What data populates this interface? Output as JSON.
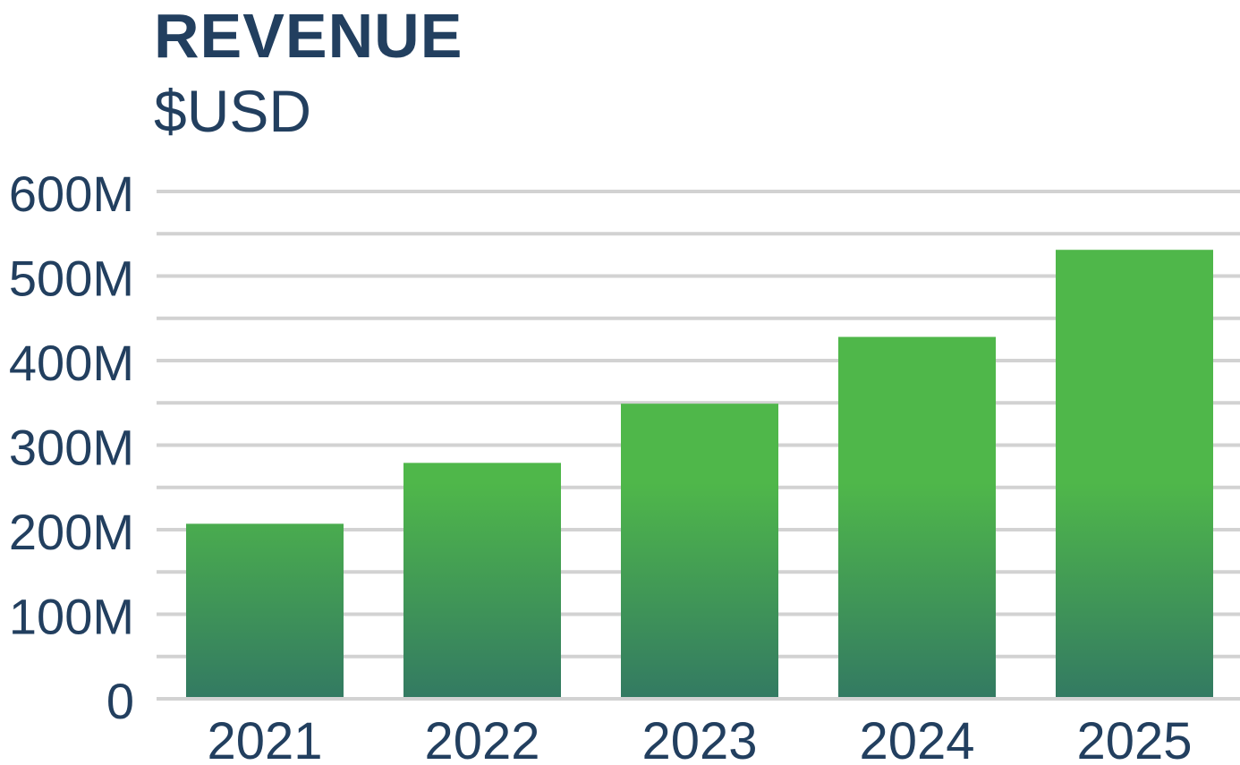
{
  "chart_data": {
    "type": "bar",
    "title": "REVENUE",
    "subtitle": "$USD",
    "xlabel": "",
    "ylabel": "",
    "categories": [
      "2021",
      "2022",
      "2023",
      "2024",
      "2025"
    ],
    "values": [
      207,
      279,
      349,
      428,
      531
    ],
    "value_unit": "M",
    "ylim": [
      0,
      600
    ],
    "y_ticks": [
      {
        "value": 0,
        "label": "0"
      },
      {
        "value": 100,
        "label": "100M"
      },
      {
        "value": 200,
        "label": "200M"
      },
      {
        "value": 300,
        "label": "300M"
      },
      {
        "value": 400,
        "label": "400M"
      },
      {
        "value": 500,
        "label": "500M"
      },
      {
        "value": 600,
        "label": "600M"
      }
    ],
    "minor_grid_step": 50,
    "grid": true,
    "legend": "none"
  },
  "colors": {
    "title": "#223f5f",
    "axis_text": "#223f5f",
    "grid": "#d2d2d2",
    "bar_top": "#4fb74a",
    "bar_bottom": "#337a62"
  }
}
